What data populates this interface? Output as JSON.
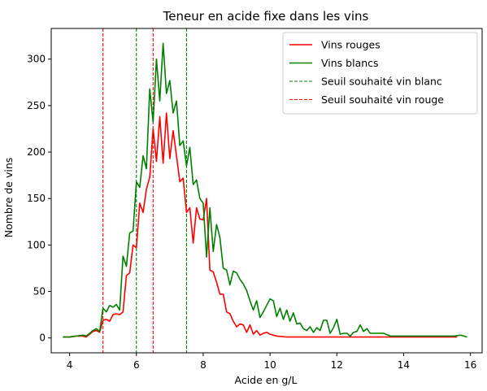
{
  "chart_data": {
    "type": "line",
    "title": "Teneur en acide fixe dans les vins",
    "xlabel": "Acide en g/L",
    "ylabel": "Nombre de vins",
    "xlim": [
      3.45,
      16.35
    ],
    "ylim": [
      -16,
      333
    ],
    "xticks": [
      4,
      6,
      8,
      10,
      12,
      14,
      16
    ],
    "yticks": [
      0,
      50,
      100,
      150,
      200,
      250,
      300
    ],
    "grid": false,
    "legend_position": "top-right",
    "series": [
      {
        "name": "Vins rouges",
        "color": "#ff0000",
        "style": "solid",
        "points": [
          [
            3.8,
            1
          ],
          [
            4.0,
            1
          ],
          [
            4.2,
            2
          ],
          [
            4.4,
            2
          ],
          [
            4.5,
            1
          ],
          [
            4.6,
            4
          ],
          [
            4.7,
            7
          ],
          [
            4.8,
            8
          ],
          [
            4.9,
            6
          ],
          [
            5.0,
            19
          ],
          [
            5.1,
            20
          ],
          [
            5.2,
            18
          ],
          [
            5.3,
            25
          ],
          [
            5.4,
            26
          ],
          [
            5.5,
            25
          ],
          [
            5.6,
            28
          ],
          [
            5.7,
            67
          ],
          [
            5.8,
            70
          ],
          [
            5.9,
            100
          ],
          [
            6.0,
            97
          ],
          [
            6.1,
            145
          ],
          [
            6.2,
            135
          ],
          [
            6.3,
            160
          ],
          [
            6.4,
            173
          ],
          [
            6.5,
            225
          ],
          [
            6.6,
            190
          ],
          [
            6.7,
            238
          ],
          [
            6.8,
            188
          ],
          [
            6.9,
            242
          ],
          [
            7.0,
            193
          ],
          [
            7.1,
            223
          ],
          [
            7.2,
            196
          ],
          [
            7.3,
            168
          ],
          [
            7.4,
            172
          ],
          [
            7.5,
            135
          ],
          [
            7.6,
            140
          ],
          [
            7.7,
            102
          ],
          [
            7.8,
            140
          ],
          [
            7.9,
            128
          ],
          [
            8.0,
            127
          ],
          [
            8.1,
            150
          ],
          [
            8.2,
            73
          ],
          [
            8.3,
            71
          ],
          [
            8.4,
            60
          ],
          [
            8.5,
            47
          ],
          [
            8.6,
            47
          ],
          [
            8.7,
            28
          ],
          [
            8.8,
            26
          ],
          [
            8.9,
            18
          ],
          [
            9.0,
            12
          ],
          [
            9.1,
            15
          ],
          [
            9.2,
            14
          ],
          [
            9.3,
            6
          ],
          [
            9.4,
            14
          ],
          [
            9.5,
            4
          ],
          [
            9.6,
            8
          ],
          [
            9.7,
            3
          ],
          [
            9.8,
            5
          ],
          [
            9.9,
            6
          ],
          [
            10.0,
            4
          ],
          [
            10.2,
            2
          ],
          [
            10.5,
            1
          ],
          [
            11.0,
            1
          ],
          [
            11.5,
            1
          ],
          [
            12.0,
            1
          ],
          [
            12.5,
            1
          ],
          [
            13.0,
            1
          ],
          [
            13.5,
            1
          ],
          [
            14.0,
            1
          ],
          [
            14.5,
            1
          ],
          [
            15.0,
            1
          ],
          [
            15.6,
            1
          ]
        ]
      },
      {
        "name": "Vins blancs",
        "color": "#008000",
        "style": "solid",
        "points": [
          [
            3.8,
            1
          ],
          [
            4.0,
            1
          ],
          [
            4.2,
            2
          ],
          [
            4.4,
            3
          ],
          [
            4.5,
            2
          ],
          [
            4.6,
            5
          ],
          [
            4.7,
            8
          ],
          [
            4.8,
            10
          ],
          [
            4.9,
            7
          ],
          [
            5.0,
            32
          ],
          [
            5.1,
            28
          ],
          [
            5.2,
            35
          ],
          [
            5.3,
            33
          ],
          [
            5.4,
            36
          ],
          [
            5.5,
            30
          ],
          [
            5.6,
            88
          ],
          [
            5.7,
            77
          ],
          [
            5.8,
            113
          ],
          [
            5.9,
            115
          ],
          [
            6.0,
            168
          ],
          [
            6.1,
            162
          ],
          [
            6.2,
            196
          ],
          [
            6.3,
            182
          ],
          [
            6.4,
            268
          ],
          [
            6.5,
            232
          ],
          [
            6.6,
            300
          ],
          [
            6.7,
            255
          ],
          [
            6.8,
            317
          ],
          [
            6.9,
            263
          ],
          [
            7.0,
            277
          ],
          [
            7.1,
            242
          ],
          [
            7.2,
            255
          ],
          [
            7.3,
            207
          ],
          [
            7.4,
            212
          ],
          [
            7.5,
            185
          ],
          [
            7.6,
            205
          ],
          [
            7.7,
            165
          ],
          [
            7.8,
            170
          ],
          [
            7.9,
            150
          ],
          [
            8.0,
            145
          ],
          [
            8.1,
            87
          ],
          [
            8.2,
            140
          ],
          [
            8.3,
            93
          ],
          [
            8.4,
            122
          ],
          [
            8.5,
            108
          ],
          [
            8.6,
            75
          ],
          [
            8.7,
            73
          ],
          [
            8.8,
            57
          ],
          [
            8.9,
            72
          ],
          [
            9.0,
            70
          ],
          [
            9.1,
            63
          ],
          [
            9.2,
            58
          ],
          [
            9.3,
            51
          ],
          [
            9.4,
            40
          ],
          [
            9.5,
            30
          ],
          [
            9.6,
            40
          ],
          [
            9.7,
            22
          ],
          [
            9.8,
            28
          ],
          [
            9.9,
            35
          ],
          [
            10.0,
            42
          ],
          [
            10.1,
            40
          ],
          [
            10.2,
            23
          ],
          [
            10.3,
            32
          ],
          [
            10.4,
            20
          ],
          [
            10.5,
            30
          ],
          [
            10.6,
            18
          ],
          [
            10.7,
            27
          ],
          [
            10.8,
            15
          ],
          [
            10.9,
            16
          ],
          [
            11.0,
            10
          ],
          [
            11.1,
            8
          ],
          [
            11.2,
            12
          ],
          [
            11.3,
            6
          ],
          [
            11.4,
            11
          ],
          [
            11.5,
            8
          ],
          [
            11.6,
            19
          ],
          [
            11.7,
            19
          ],
          [
            11.8,
            5
          ],
          [
            11.9,
            11
          ],
          [
            12.0,
            20
          ],
          [
            12.1,
            4
          ],
          [
            12.2,
            5
          ],
          [
            12.3,
            5
          ],
          [
            12.4,
            2
          ],
          [
            12.5,
            6
          ],
          [
            12.6,
            7
          ],
          [
            12.7,
            14
          ],
          [
            12.8,
            7
          ],
          [
            12.9,
            10
          ],
          [
            13.0,
            5
          ],
          [
            13.2,
            5
          ],
          [
            13.4,
            5
          ],
          [
            13.6,
            2
          ],
          [
            14.0,
            2
          ],
          [
            14.5,
            2
          ],
          [
            15.0,
            2
          ],
          [
            15.5,
            2
          ],
          [
            15.7,
            3
          ],
          [
            15.9,
            1
          ]
        ]
      }
    ],
    "vlines": [
      {
        "name": "Seuil souhaité vin blanc",
        "color": "#008000",
        "style": "dashed",
        "x": [
          6.0,
          7.5
        ]
      },
      {
        "name": "Seuil souhaité vin rouge",
        "color": "#ff0000",
        "style": "dashed",
        "x": [
          5.0,
          6.5
        ]
      }
    ]
  }
}
